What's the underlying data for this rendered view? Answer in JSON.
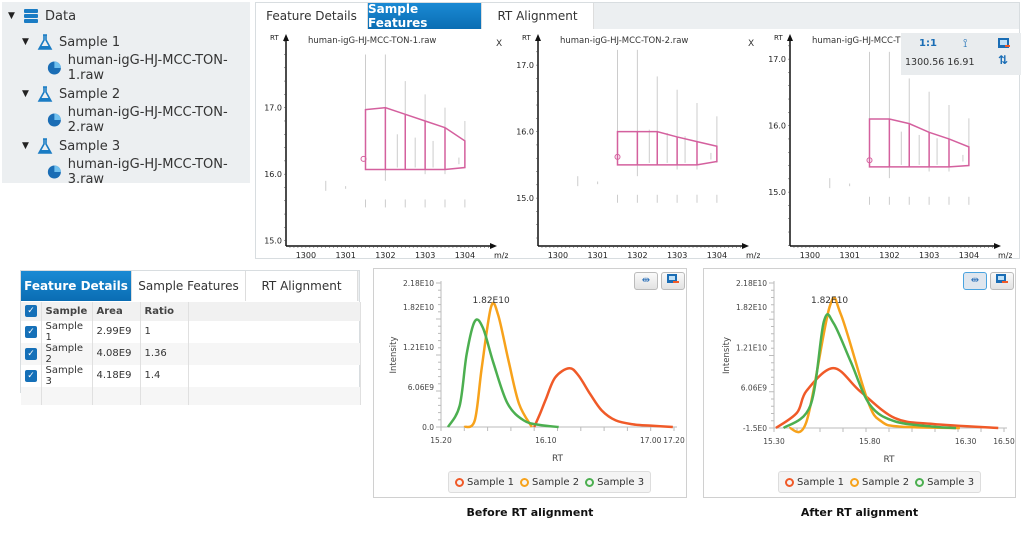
{
  "tree": {
    "root": "Data",
    "items": [
      {
        "sample": "Sample 1",
        "file": "human-igG-HJ-MCC-TON-1.raw"
      },
      {
        "sample": "Sample 2",
        "file": "human-igG-HJ-MCC-TON-2.raw"
      },
      {
        "sample": "Sample 3",
        "file": "human-igG-HJ-MCC-TON-3.raw"
      }
    ]
  },
  "top_tabs": [
    "Feature Details",
    "Sample Features",
    "RT Alignment"
  ],
  "top_tab_selected": "Sample Features",
  "subplots": [
    {
      "title": "human-igG-HJ-MCC-TON-1.raw",
      "close": "X",
      "rt_range": [
        14.92,
        18.1
      ],
      "rt_ticks": [
        "15.0",
        "16.0",
        "17.0"
      ],
      "top": [
        [
          1301.5,
          16.97
        ],
        [
          1302,
          17.0
        ],
        [
          1302.5,
          16.9
        ],
        [
          1303,
          16.8
        ],
        [
          1303.5,
          16.7
        ],
        [
          1304,
          16.5
        ]
      ],
      "bottom": [
        [
          1301.5,
          16.07
        ],
        [
          1303.5,
          16.07
        ],
        [
          1304,
          16.1
        ]
      ],
      "marker": [
        1301.45,
        16.23
      ],
      "rt_shift": 0
    },
    {
      "title": "human-igG-HJ-MCC-TON-2.raw",
      "close": "X",
      "rt_range": [
        14.28,
        17.45
      ],
      "rt_ticks": [
        "15.0",
        "16.0",
        "17.0"
      ],
      "top": [
        [
          1301.5,
          16.0
        ],
        [
          1302.5,
          16.0
        ],
        [
          1303,
          15.92
        ],
        [
          1303.5,
          15.85
        ],
        [
          1304,
          15.78
        ]
      ],
      "bottom": [
        [
          1301.5,
          15.5
        ],
        [
          1303.5,
          15.5
        ],
        [
          1304,
          15.55
        ]
      ],
      "marker": [
        1301.5,
        15.62
      ],
      "rt_shift": -0.57
    },
    {
      "title": "human-igG-HJ-MCC-T",
      "close": "",
      "rt_range": [
        14.19,
        17.35
      ],
      "rt_ticks": [
        "15.0",
        "16.0",
        "17.0"
      ],
      "top": [
        [
          1301.5,
          16.1
        ],
        [
          1302,
          16.1
        ],
        [
          1302.5,
          16.03
        ],
        [
          1303,
          15.9
        ],
        [
          1303.5,
          15.8
        ],
        [
          1304,
          15.68
        ]
      ],
      "bottom": [
        [
          1301.5,
          15.38
        ],
        [
          1303.5,
          15.38
        ],
        [
          1304,
          15.4
        ]
      ],
      "marker": [
        1301.5,
        15.48
      ],
      "rt_shift": -0.69
    }
  ],
  "mz_ticks": [
    "1300",
    "1301",
    "1302",
    "1303",
    "1304"
  ],
  "mz_label": "m/z",
  "rt_label": "RT",
  "overlay": {
    "ratio": "1:1",
    "coords": "1300.56 16.91"
  },
  "feature_color": "#d4609e",
  "table": {
    "tabs": [
      "Feature Details",
      "Sample Features",
      "RT Alignment"
    ],
    "selected": "Feature Details",
    "headers": [
      "Sample",
      "Area",
      "Ratio"
    ],
    "rows": [
      [
        "Sample 1",
        "2.99E9",
        "1"
      ],
      [
        "Sample 2",
        "4.08E9",
        "1.36"
      ],
      [
        "Sample 3",
        "4.18E9",
        "1.4"
      ]
    ]
  },
  "chart_data": [
    {
      "type": "line",
      "caption": "Before RT alignment",
      "xlabel": "RT",
      "ylabel": "Intensity",
      "xlim": [
        15.2,
        17.2
      ],
      "ylim": [
        0,
        21800000000.0
      ],
      "x_ticks": [
        "15.20",
        "16.10",
        "17.00",
        "17.20"
      ],
      "x_tick_vals": [
        15.2,
        16.1,
        17.0,
        17.2
      ],
      "y_ticks": [
        "0.0",
        "6.06E9",
        "1.21E10",
        "1.82E10",
        "2.18E10"
      ],
      "y_tick_vals": [
        0,
        6060000000.0,
        12100000000.0,
        18200000000.0,
        21800000000.0
      ],
      "annotation": "1.82E10",
      "annotation_at": [
        15.63,
        18200000000.0
      ],
      "legend": "bottom",
      "series": [
        {
          "name": "Sample 1",
          "color": "#f05a28",
          "x": [
            16.0,
            16.05,
            16.1,
            16.18,
            16.3,
            16.38,
            16.48,
            16.58,
            16.7,
            16.85,
            17.0,
            17.19
          ],
          "y": [
            0,
            2000000000.0,
            4200000000.0,
            7500000000.0,
            8900000000.0,
            7800000000.0,
            5000000000.0,
            2500000000.0,
            1000000000.0,
            400000000.0,
            200000000.0,
            0
          ]
        },
        {
          "name": "Sample 2",
          "color": "#f7a21b",
          "x": [
            15.4,
            15.49,
            15.55,
            15.63,
            15.69,
            15.78,
            15.87,
            15.98
          ],
          "y": [
            0,
            1000000000.0,
            9000000000.0,
            18200000000.0,
            17000000000.0,
            10000000000.0,
            3500000000.0,
            0
          ]
        },
        {
          "name": "Sample 3",
          "color": "#4caf50",
          "x": [
            15.26,
            15.36,
            15.42,
            15.49,
            15.56,
            15.65,
            15.77,
            15.91,
            16.05,
            16.21
          ],
          "y": [
            0,
            3200000000.0,
            11000000000.0,
            16000000000.0,
            15000000000.0,
            9700000000.0,
            3600000000.0,
            1000000000.0,
            300000000.0,
            0
          ]
        }
      ]
    },
    {
      "type": "line",
      "caption": "After RT alignment",
      "xlabel": "RT",
      "ylabel": "Intensity",
      "xlim": [
        15.3,
        16.5
      ],
      "ylim": [
        -1.5,
        21800000000.0
      ],
      "x_ticks": [
        "15.30",
        "15.80",
        "16.30",
        "16.50"
      ],
      "x_tick_vals": [
        15.3,
        15.8,
        16.3,
        16.5
      ],
      "y_ticks": [
        "-1.5E0",
        "6.06E9",
        "1.21E10",
        "1.82E10",
        "2.18E10"
      ],
      "y_tick_vals": [
        -1.5,
        6060000000.0,
        12100000000.0,
        18200000000.0,
        21800000000.0
      ],
      "annotation": "1.82E10",
      "annotation_at": [
        15.59,
        18200000000.0
      ],
      "legend": "bottom",
      "series": [
        {
          "name": "Sample 1",
          "color": "#f05a28",
          "x": [
            15.31,
            15.42,
            15.47,
            15.61,
            15.75,
            15.93,
            16.13,
            16.47
          ],
          "y": [
            0,
            2300000000.0,
            5600000000.0,
            9000000000.0,
            5500000000.0,
            1500000000.0,
            600000000.0,
            0
          ]
        },
        {
          "name": "Sample 2",
          "color": "#f7a21b",
          "x": [
            15.38,
            15.47,
            15.59,
            15.65,
            15.79,
            15.86,
            15.96,
            16.27
          ],
          "y": [
            0,
            1000000000.0,
            18200000000.0,
            17000000000.0,
            4000000000.0,
            1000000000.0,
            200000000.0,
            0
          ]
        },
        {
          "name": "Sample 3",
          "color": "#4caf50",
          "x": [
            15.35,
            15.49,
            15.56,
            15.61,
            15.7,
            15.8,
            15.93,
            16.13,
            16.25
          ],
          "y": [
            0,
            3400000000.0,
            16000000000.0,
            15800000000.0,
            10000000000.0,
            3500000000.0,
            1000000000.0,
            200000000.0,
            0
          ]
        }
      ]
    }
  ]
}
